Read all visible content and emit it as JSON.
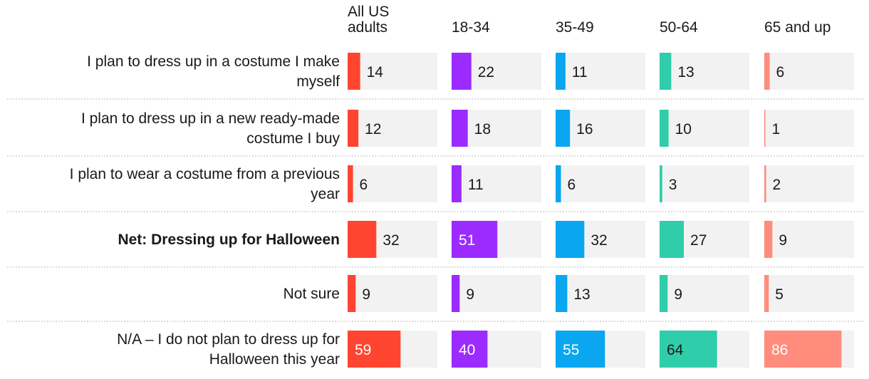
{
  "chart_data": {
    "type": "bar",
    "title": "",
    "xlabel": "",
    "ylabel": "",
    "xlim": [
      0,
      100
    ],
    "grid": false,
    "legend": "none",
    "value_label_inside_threshold": 40,
    "categories": [
      {
        "lines": [
          "I plan to dress up in a costume I make",
          "myself"
        ],
        "bold": false
      },
      {
        "lines": [
          "I plan to dress up in a new ready-made",
          "costume I buy"
        ],
        "bold": false
      },
      {
        "lines": [
          "I plan to wear a costume from a previous",
          "year"
        ],
        "bold": false
      },
      {
        "lines": [
          "Net: Dressing up for Halloween"
        ],
        "bold": true
      },
      {
        "lines": [
          "Not sure"
        ],
        "bold": false
      },
      {
        "lines": [
          "N/A – I do not plan to dress up for",
          "Halloween this year"
        ],
        "bold": false
      }
    ],
    "series": [
      {
        "name_lines": [
          "All US",
          "adults"
        ],
        "color": "#ff4530",
        "values": [
          14,
          12,
          6,
          32,
          9,
          59
        ]
      },
      {
        "name_lines": [
          "18-34"
        ],
        "color": "#9b2bff",
        "values": [
          22,
          18,
          11,
          51,
          9,
          40
        ]
      },
      {
        "name_lines": [
          "35-49"
        ],
        "color": "#0aa6f0",
        "values": [
          11,
          16,
          6,
          32,
          13,
          55
        ]
      },
      {
        "name_lines": [
          "50-64"
        ],
        "color": "#2fcdaa",
        "values": [
          13,
          10,
          3,
          27,
          9,
          64
        ]
      },
      {
        "name_lines": [
          "65 and up"
        ],
        "color": "#ff8c7d",
        "values": [
          6,
          1,
          2,
          9,
          5,
          86
        ]
      }
    ],
    "colors": {
      "track": "#f2f2f2",
      "text": "#1a1a1a",
      "value_inside": "#ffffff",
      "value_inside_light": "#1a1a1a",
      "separator": "#bbbbbb"
    }
  }
}
